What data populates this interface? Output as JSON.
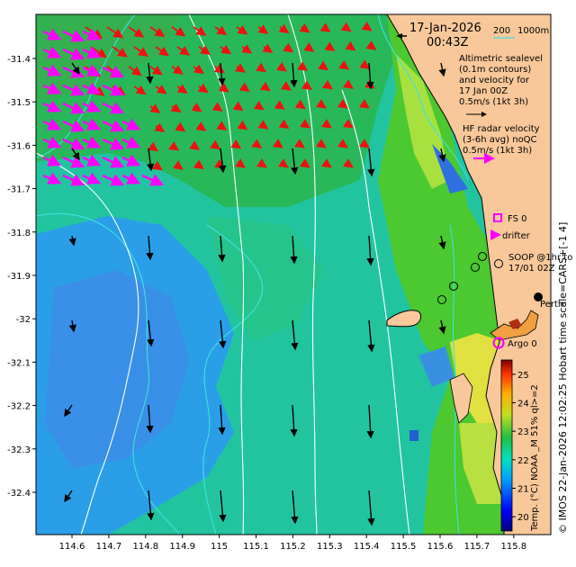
{
  "map": {
    "date": "17-Jan-2026",
    "time": "00:43Z",
    "scale_bar": {
      "left": "200",
      "right": "1000m",
      "color": "#40e0e0"
    },
    "lon_ticks": [
      "114.6",
      "114.7",
      "114.8",
      "114.9",
      "115",
      "115.1",
      "115.2",
      "115.3",
      "115.4",
      "115.5",
      "115.6",
      "115.7",
      "115.8"
    ],
    "lat_ticks": [
      "-31.4",
      "-31.5",
      "-31.6",
      "-31.7",
      "-31.8",
      "-31.9",
      "-32",
      "-32.1",
      "-32.2",
      "-32.3",
      "-32.4"
    ],
    "place_label": "Perth",
    "credit": "© IMOS 22-Jan-2026 12:02:25 Hobart time scale=CARS+[-1 4]"
  },
  "legend": {
    "alt_line1": "Altimetric sealevel",
    "alt_line2": "(0.1m contours)",
    "alt_line3": "and velocity for",
    "alt_line4": "17 Jan 00Z",
    "alt_line5": "0.5m/s (1kt 3h)",
    "hf_line1": "HF radar velocity",
    "hf_line2": "(3-6h avg) noQC",
    "hf_line3": "0.5m/s (1kt 3h)",
    "fs": "FS 0",
    "drifter": "drifter",
    "soop_line1": "SOOP @1hr to",
    "soop_line2": "17/01 02Z",
    "argo": "Argo 0",
    "colors": {
      "altimetry_arrow": "#000000",
      "hf_arrow": "#ff00ff",
      "red_arrow": "#ee1111",
      "land": "#f8c89a",
      "fs_marker": "#ff00ff",
      "argo_marker": "#ff00ff",
      "contour": "#ffffff",
      "isobath": "#40e0e0"
    }
  },
  "colorbar": {
    "label": "Temp. (°C) NOAA _M 51% ql>=2",
    "ticks": [
      "20",
      "21",
      "22",
      "23",
      "24",
      "25"
    ],
    "range": [
      19.5,
      25.5
    ]
  }
}
